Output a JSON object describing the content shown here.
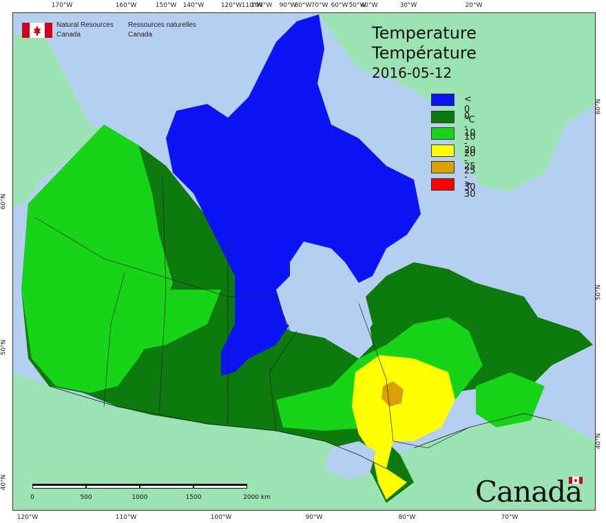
{
  "header": {
    "agency_en_line1": "Natural Resources",
    "agency_en_line2": "Canada",
    "agency_fr_line1": "Ressources naturelles",
    "agency_fr_line2": "Canada"
  },
  "title": {
    "en": "Temperature",
    "fr": "Température",
    "date": "2016-05-12"
  },
  "legend": [
    {
      "label": "< 0 °C",
      "color": "#0a14f5"
    },
    {
      "label": "0 - 10",
      "color": "#0c7a0c"
    },
    {
      "label": "10 - 20",
      "color": "#18d418"
    },
    {
      "label": "20 - 25",
      "color": "#ffff00"
    },
    {
      "label": "25 - 30",
      "color": "#d9a000"
    },
    {
      "label": "> 30",
      "color": "#ff0000"
    }
  ],
  "graticule": {
    "top": [
      "170°W",
      "160°W",
      "150°W",
      "140°W",
      "120°W",
      "110°W",
      "100°W",
      "90°W",
      "80°W",
      "70°W",
      "60°W",
      "50°W",
      "40°W",
      "30°W",
      "20°W"
    ],
    "bottom": [
      "120°W",
      "110°W",
      "100°W",
      "90°W",
      "80°W",
      "70°W"
    ],
    "left": [
      "60°N",
      "50°N",
      "40°N"
    ],
    "right": [
      "60°N",
      "50°N",
      "40°N"
    ]
  },
  "scale_bar": {
    "labels": [
      "0",
      "500",
      "1000",
      "1500",
      "2000 km"
    ]
  },
  "colors": {
    "water": "#b4cff0",
    "foreign_land": "#9ce3b4",
    "border": "#222222"
  },
  "wordmark": "Canada"
}
